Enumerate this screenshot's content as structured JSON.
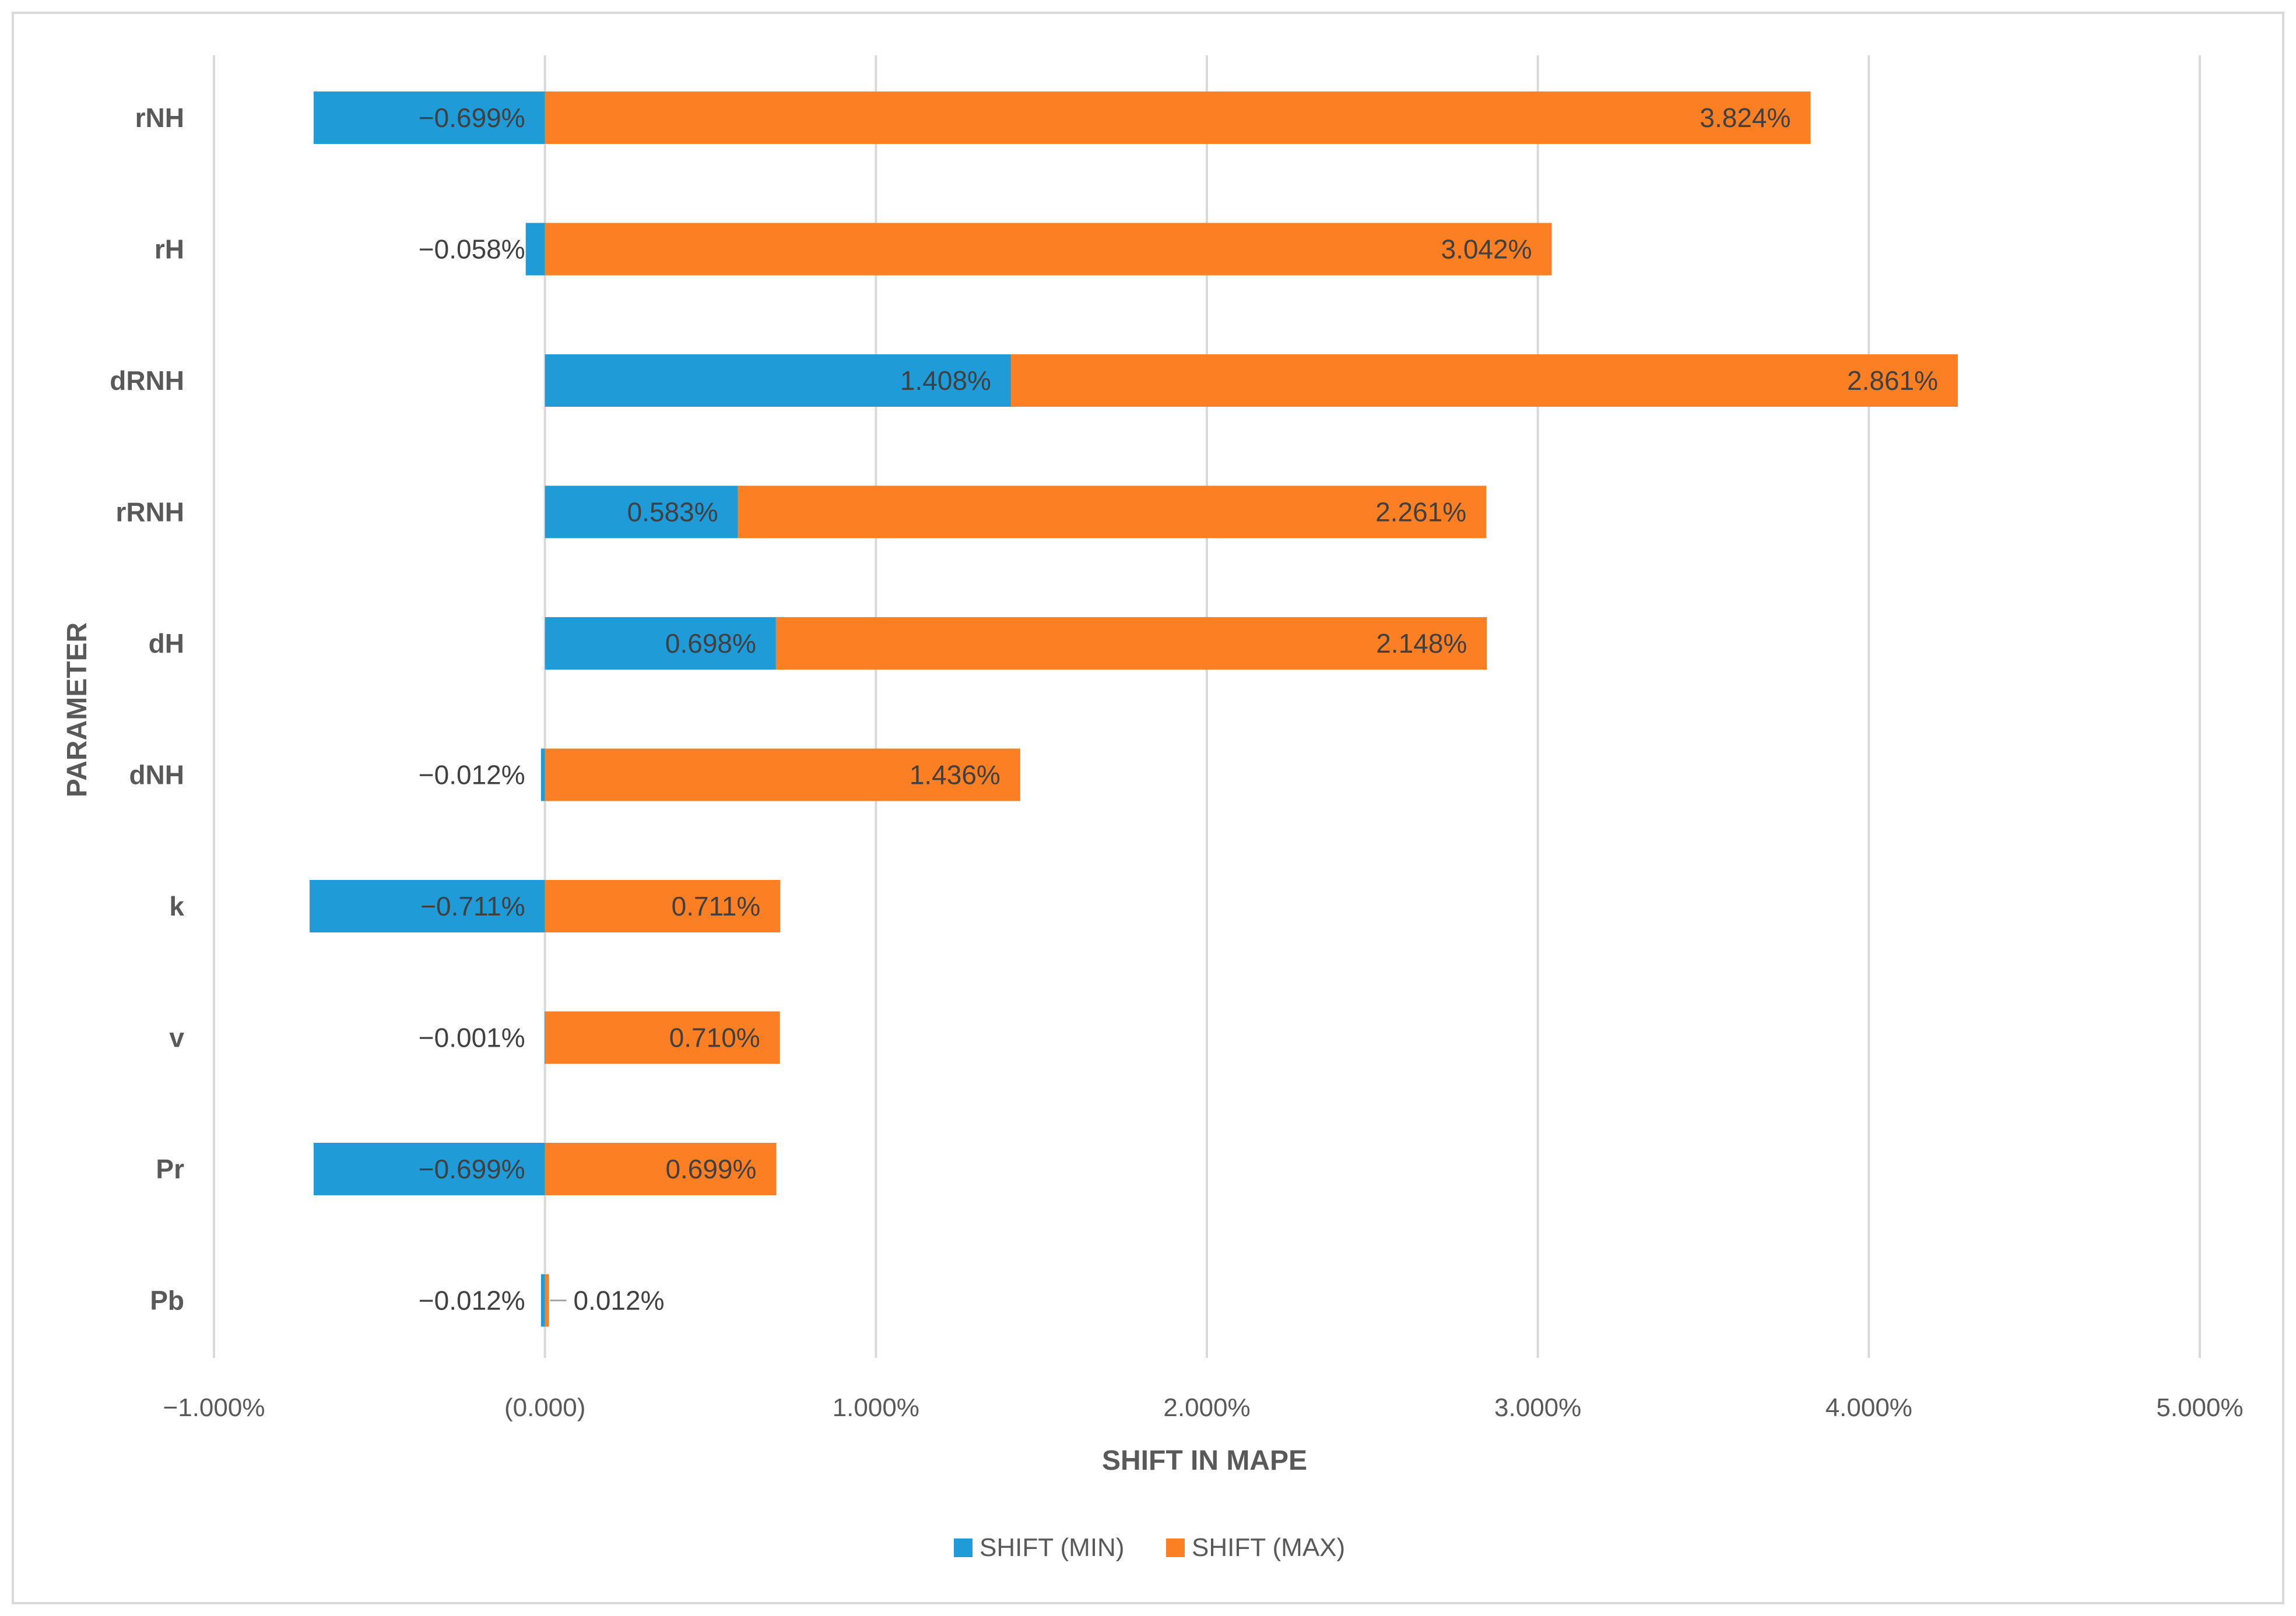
{
  "chart_data": {
    "type": "bar",
    "orientation": "horizontal",
    "stacked": true,
    "categories": [
      "rNH",
      "rH",
      "dRNH",
      "rRNH",
      "dH",
      "dNH",
      "k",
      "v",
      "Pr",
      "Pb"
    ],
    "series": [
      {
        "name": "SHIFT (MIN)",
        "color": "#1f9bd7",
        "values": [
          -0.699,
          -0.058,
          1.408,
          0.583,
          0.698,
          -0.012,
          -0.711,
          -0.001,
          -0.699,
          -0.012
        ],
        "labels": [
          "−0.699%",
          "−0.058%",
          "1.408%",
          "0.583%",
          "0.698%",
          "−0.012%",
          "−0.711%",
          "−0.001%",
          "−0.699%",
          "−0.012%"
        ]
      },
      {
        "name": "SHIFT (MAX)",
        "color": "#fd7f23",
        "values": [
          3.824,
          3.042,
          2.861,
          2.261,
          2.148,
          1.436,
          0.711,
          0.71,
          0.699,
          0.012
        ],
        "labels": [
          "3.824%",
          "3.042%",
          "2.861%",
          "2.261%",
          "2.148%",
          "1.436%",
          "0.711%",
          "0.710%",
          "0.699%",
          "0.012%"
        ]
      }
    ],
    "xlim": [
      -1.0,
      5.0
    ],
    "xticks": [
      -1,
      0,
      1,
      2,
      3,
      4,
      5
    ],
    "xtick_labels": [
      "−1.000%",
      "(0.000)",
      "1.000%",
      "2.000%",
      "3.000%",
      "4.000%",
      "5.000%"
    ],
    "xlabel": "SHIFT IN MAPE",
    "ylabel": "PARAMETER",
    "grid": "vertical",
    "legend": "bottom-center"
  }
}
